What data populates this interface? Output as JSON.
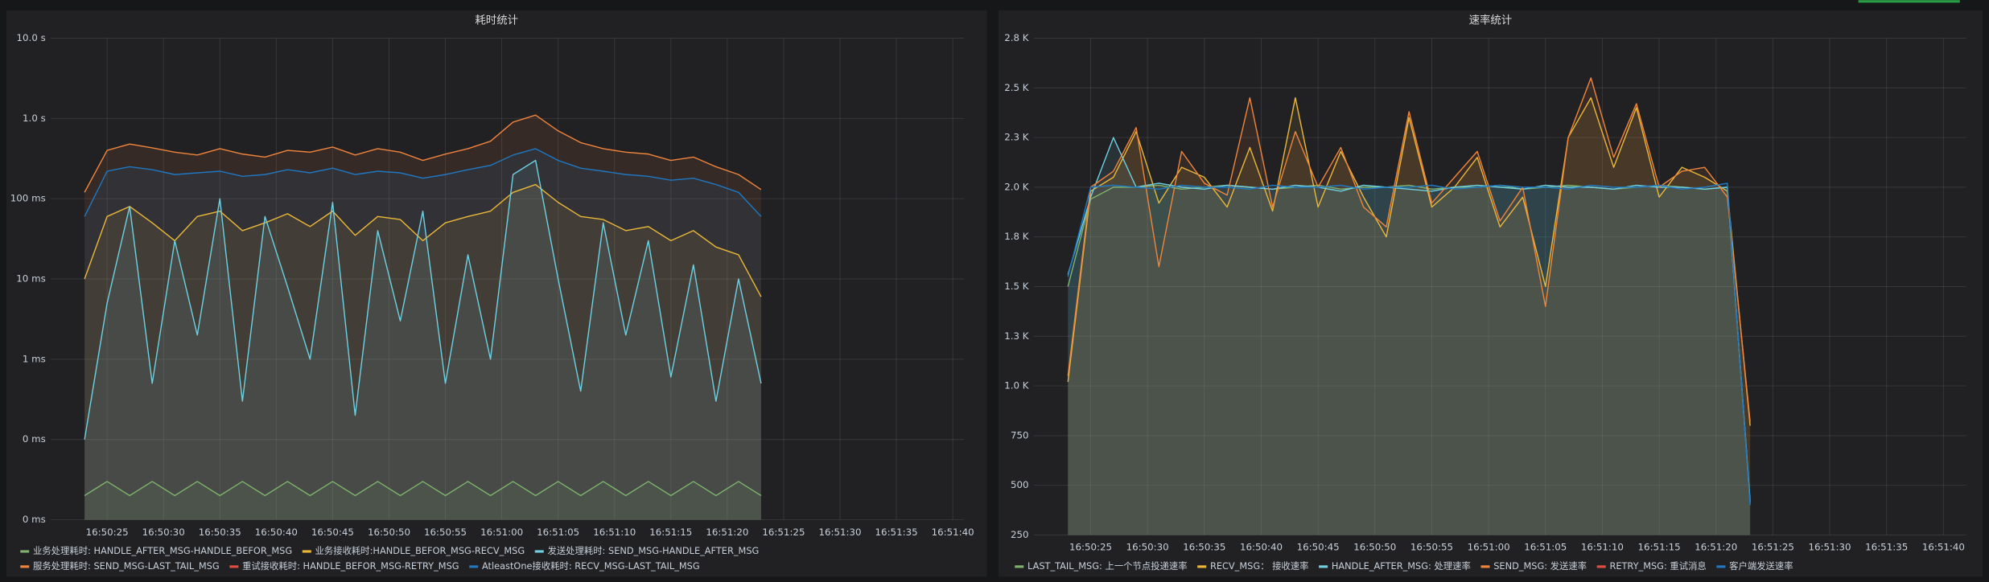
{
  "chart_data": [
    {
      "type": "line",
      "title": "耗时统计",
      "log_scale": true,
      "grid": true,
      "legend": "bottom",
      "x": [
        "16:50:23",
        "16:50:25",
        "16:50:27",
        "16:50:29",
        "16:50:31",
        "16:50:33",
        "16:50:35",
        "16:50:37",
        "16:50:39",
        "16:50:41",
        "16:50:43",
        "16:50:45",
        "16:50:47",
        "16:50:49",
        "16:50:51",
        "16:50:53",
        "16:50:55",
        "16:50:57",
        "16:50:59",
        "16:51:01",
        "16:51:03",
        "16:51:05",
        "16:51:07",
        "16:51:09",
        "16:51:11",
        "16:51:13",
        "16:51:15",
        "16:51:17",
        "16:51:19",
        "16:51:21",
        "16:51:23"
      ],
      "xlim": [
        "16:50:20",
        "16:51:41"
      ],
      "xticks": [
        "16:50:25",
        "16:50:30",
        "16:50:35",
        "16:50:40",
        "16:50:45",
        "16:50:50",
        "16:50:55",
        "16:51:00",
        "16:51:05",
        "16:51:10",
        "16:51:15",
        "16:51:20",
        "16:51:25",
        "16:51:30",
        "16:51:35",
        "16:51:40"
      ],
      "ylim": [
        0.01,
        10000
      ],
      "yticks": [
        {
          "value": 0.01,
          "label": "0 ms"
        },
        {
          "value": 0.1,
          "label": "0 ms"
        },
        {
          "value": 1,
          "label": "1 ms"
        },
        {
          "value": 10,
          "label": "10 ms"
        },
        {
          "value": 100,
          "label": "100 ms"
        },
        {
          "value": 1000,
          "label": "1.0 s"
        },
        {
          "value": 10000,
          "label": "10.0 s"
        }
      ],
      "series": [
        {
          "name": "业务处理耗时: HANDLE_AFTER_MSG-HANDLE_BEFOR_MSG",
          "color": "#7eb26d",
          "values": [
            0.02,
            0.03,
            0.02,
            0.03,
            0.02,
            0.03,
            0.02,
            0.03,
            0.02,
            0.03,
            0.02,
            0.03,
            0.02,
            0.03,
            0.02,
            0.03,
            0.02,
            0.03,
            0.02,
            0.03,
            0.02,
            0.03,
            0.02,
            0.03,
            0.02,
            0.03,
            0.02,
            0.03,
            0.02,
            0.03,
            0.02
          ]
        },
        {
          "name": "业务接收耗时:HANDLE_BEFOR_MSG-RECV_MSG",
          "color": "#eab839",
          "values": [
            10,
            60,
            80,
            50,
            30,
            60,
            70,
            40,
            50,
            65,
            45,
            70,
            35,
            60,
            55,
            30,
            50,
            60,
            70,
            120,
            150,
            90,
            60,
            55,
            40,
            45,
            30,
            40,
            25,
            20,
            6
          ]
        },
        {
          "name": "发送处理耗时: SEND_MSG-HANDLE_AFTER_MSG",
          "color": "#6ed0e0",
          "values": [
            0.1,
            5,
            80,
            0.5,
            30,
            2,
            100,
            0.3,
            60,
            8,
            1,
            90,
            0.2,
            40,
            3,
            70,
            0.5,
            20,
            1,
            200,
            300,
            10,
            0.4,
            50,
            2,
            30,
            0.6,
            15,
            0.3,
            10,
            0.5
          ]
        },
        {
          "name": "服务处理耗时: SEND_MSG-LAST_TAIL_MSG",
          "color": "#ef843c",
          "values": [
            120,
            400,
            480,
            430,
            380,
            350,
            420,
            360,
            330,
            400,
            380,
            440,
            350,
            420,
            380,
            300,
            360,
            420,
            520,
            900,
            1100,
            700,
            500,
            420,
            380,
            360,
            300,
            330,
            250,
            200,
            130
          ]
        },
        {
          "name": "重试接收耗时: HANDLE_BEFOR_MSG-RETRY_MSG",
          "color": "#e24d42",
          "values": [
            null,
            null,
            null,
            null,
            null,
            null,
            null,
            null,
            null,
            null,
            null,
            null,
            null,
            null,
            null,
            null,
            null,
            null,
            null,
            null,
            null,
            null,
            null,
            null,
            null,
            null,
            null,
            null,
            null,
            null,
            null
          ]
        },
        {
          "name": "AtleastOne接收耗时: RECV_MSG-LAST_TAIL_MSG",
          "color": "#1f78c1",
          "values": [
            60,
            220,
            250,
            230,
            200,
            210,
            220,
            190,
            200,
            230,
            210,
            240,
            200,
            220,
            210,
            180,
            200,
            230,
            260,
            350,
            420,
            300,
            240,
            220,
            200,
            190,
            170,
            180,
            150,
            120,
            60
          ]
        }
      ]
    },
    {
      "type": "line",
      "title": "速率统计",
      "log_scale": false,
      "grid": true,
      "legend": "bottom",
      "x": [
        "16:50:23",
        "16:50:25",
        "16:50:27",
        "16:50:29",
        "16:50:31",
        "16:50:33",
        "16:50:35",
        "16:50:37",
        "16:50:39",
        "16:50:41",
        "16:50:43",
        "16:50:45",
        "16:50:47",
        "16:50:49",
        "16:50:51",
        "16:50:53",
        "16:50:55",
        "16:50:57",
        "16:50:59",
        "16:51:01",
        "16:51:03",
        "16:51:05",
        "16:51:07",
        "16:51:09",
        "16:51:11",
        "16:51:13",
        "16:51:15",
        "16:51:17",
        "16:51:19",
        "16:51:21",
        "16:51:23"
      ],
      "xlim": [
        "16:50:20",
        "16:51:42"
      ],
      "xticks": [
        "16:50:25",
        "16:50:30",
        "16:50:35",
        "16:50:40",
        "16:50:45",
        "16:50:50",
        "16:50:55",
        "16:51:00",
        "16:51:05",
        "16:51:10",
        "16:51:15",
        "16:51:20",
        "16:51:25",
        "16:51:30",
        "16:51:35",
        "16:51:40"
      ],
      "ylim": [
        250,
        2750
      ],
      "yticks": [
        250,
        500,
        750,
        {
          "value": 1000,
          "label": "1.0 K"
        },
        {
          "value": 1250,
          "label": "1.3 K"
        },
        {
          "value": 1500,
          "label": "1.5 K"
        },
        {
          "value": 1750,
          "label": "1.8 K"
        },
        {
          "value": 2000,
          "label": "2.0 K"
        },
        {
          "value": 2250,
          "label": "2.3 K"
        },
        {
          "value": 2500,
          "label": "2.5 K"
        },
        {
          "value": 2750,
          "label": "2.8 K"
        }
      ],
      "series": [
        {
          "name": "LAST_TAIL_MSG: 上一个节点投递速率",
          "color": "#7eb26d",
          "values": [
            1500,
            1940,
            2000,
            2000,
            2010,
            1990,
            2000,
            2010,
            2000,
            1990,
            2000,
            2010,
            1990,
            2000,
            2000,
            2010,
            1990,
            2000,
            2000,
            2010,
            1990,
            2000,
            2010,
            2000,
            1990,
            2000,
            2010,
            2000,
            1990,
            2000,
            410
          ]
        },
        {
          "name": "RECV_MSG： 接收速率",
          "color": "#eab839",
          "values": [
            1020,
            1980,
            2050,
            2280,
            1920,
            2100,
            2050,
            1900,
            2200,
            1880,
            2450,
            1900,
            2180,
            1950,
            1750,
            2350,
            1900,
            2000,
            2150,
            1800,
            1950,
            1500,
            2250,
            2450,
            2100,
            2400,
            1950,
            2100,
            2050,
            1980,
            800
          ]
        },
        {
          "name": "HANDLE_AFTER_MSG: 处理速率",
          "color": "#6ed0e0",
          "values": [
            1560,
            1950,
            2250,
            2000,
            2020,
            2000,
            1990,
            2010,
            2000,
            1990,
            2010,
            2000,
            1980,
            2010,
            2000,
            1990,
            1980,
            2000,
            2010,
            2000,
            1990,
            2010,
            2000,
            2000,
            1990,
            2010,
            2000,
            2000,
            1990,
            2000,
            420
          ]
        },
        {
          "name": "SEND_MSG: 发送速率",
          "color": "#ef843c",
          "values": [
            1050,
            2000,
            2080,
            2300,
            1600,
            2180,
            2020,
            1960,
            2450,
            1900,
            2280,
            2000,
            2200,
            1900,
            1800,
            2380,
            1920,
            2050,
            2180,
            1830,
            2000,
            1400,
            2250,
            2550,
            2150,
            2420,
            2000,
            2080,
            2100,
            1950,
            820
          ]
        },
        {
          "name": "RETRY_MSG: 重试消息",
          "color": "#e24d42",
          "values": [
            null,
            null,
            null,
            null,
            null,
            null,
            null,
            null,
            null,
            null,
            null,
            null,
            null,
            null,
            null,
            null,
            null,
            null,
            null,
            null,
            null,
            null,
            null,
            null,
            null,
            null,
            null,
            null,
            null,
            null,
            null
          ]
        },
        {
          "name": "客户端发送速率",
          "color": "#1f78c1",
          "values": [
            1550,
            2000,
            2010,
            2000,
            1990,
            2010,
            2000,
            2000,
            1990,
            2010,
            2000,
            2000,
            2010,
            1990,
            2000,
            2000,
            2010,
            1990,
            2000,
            2010,
            2000,
            2000,
            1990,
            2010,
            2000,
            2000,
            2010,
            1990,
            2000,
            2020,
            400
          ]
        }
      ]
    }
  ]
}
